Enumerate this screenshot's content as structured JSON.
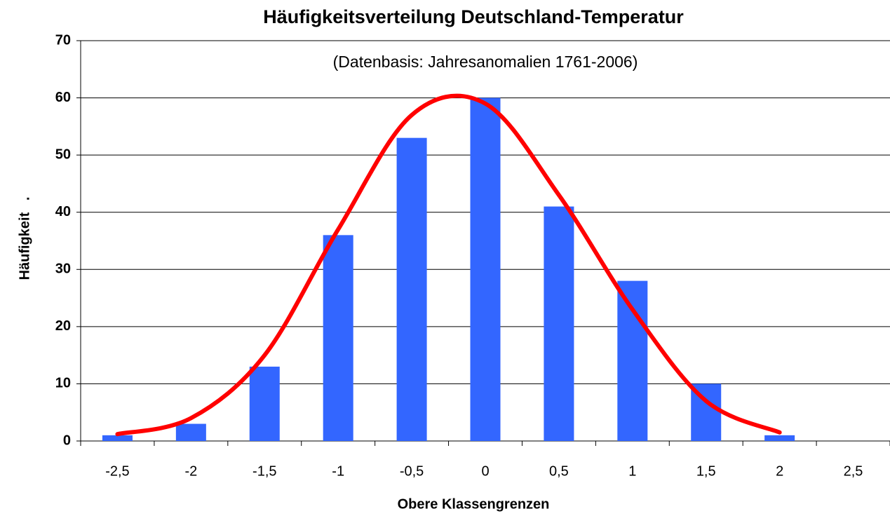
{
  "chart_data": {
    "type": "bar",
    "title": "Häufigkeitsverteilung Deutschland-Temperatur",
    "annotation": "(Datenbasis: Jahresanomalien 1761-2006)",
    "x_label": "Obere Klassengrenzen",
    "y_label": "Häufigkeit   .",
    "categories": [
      "-2,5",
      "-2",
      "-1,5",
      "-1",
      "-0,5",
      "0",
      "0,5",
      "1",
      "1,5",
      "2",
      "2,5"
    ],
    "series": [
      {
        "type": "bar",
        "color": "#3366ff",
        "values": [
          1,
          3,
          13,
          36,
          53,
          60,
          41,
          28,
          10,
          1,
          null
        ]
      },
      {
        "type": "line",
        "color": "#ff0000",
        "values": [
          1.2,
          4,
          15,
          37,
          57,
          59,
          43,
          23,
          7,
          1.5,
          null
        ]
      }
    ],
    "ylim": [
      0,
      70
    ],
    "yticks": [
      0,
      10,
      20,
      30,
      40,
      50,
      60,
      70
    ],
    "grid": true
  }
}
